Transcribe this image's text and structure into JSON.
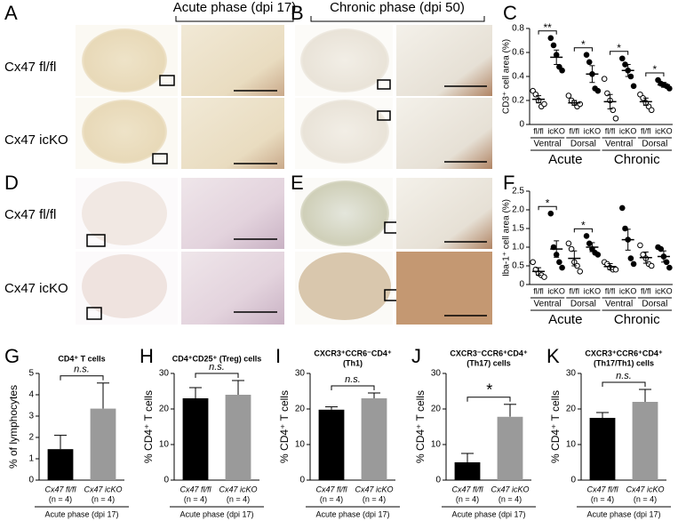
{
  "images": {
    "panels": [
      "A",
      "B",
      "D",
      "E"
    ],
    "headers": [
      "Acute phase (dpi 17)",
      "Chronic phase (dpi 50)"
    ],
    "row_labels": [
      "Cx47 fl/fl",
      "Cx47 icKO",
      "Cx47 fl/fl",
      "Cx47 icKO"
    ]
  },
  "chart_data": [
    {
      "type": "dot",
      "panel": "C",
      "ylabel": "CD3⁺ cell area (%)",
      "categories": [
        "fl/fl",
        "icKO",
        "fl/fl",
        "icKO",
        "fl/fl",
        "icKO",
        "fl/fl",
        "icKO"
      ],
      "sublabels": [
        "Ventral",
        "Dorsal",
        "Ventral",
        "Dorsal"
      ],
      "groups": [
        "Acute",
        "Chronic"
      ],
      "values": [
        0.21,
        0.56,
        0.18,
        0.42,
        0.19,
        0.45,
        0.19,
        0.33
      ],
      "errors": [
        0.03,
        0.06,
        0.02,
        0.07,
        0.06,
        0.05,
        0.03,
        0.02
      ],
      "points": [
        [
          0.28,
          0.25,
          0.2,
          0.15,
          0.17
        ],
        [
          0.72,
          0.66,
          0.58,
          0.48,
          0.45
        ],
        [
          0.24,
          0.2,
          0.18,
          0.15,
          0.17
        ],
        [
          0.58,
          0.52,
          0.42,
          0.3,
          0.28
        ],
        [
          0.38,
          0.26,
          0.2,
          0.12,
          0.05
        ],
        [
          0.55,
          0.5,
          0.45,
          0.4,
          0.32
        ],
        [
          0.25,
          0.22,
          0.18,
          0.15,
          0.12
        ],
        [
          0.37,
          0.34,
          0.33,
          0.32,
          0.3
        ]
      ],
      "significance": [
        "**",
        "*",
        "*",
        "*"
      ],
      "ylim": [
        0,
        0.8
      ],
      "yticks": [
        0,
        0.2,
        0.4,
        0.6,
        0.8
      ]
    },
    {
      "type": "dot",
      "panel": "F",
      "ylabel": "Iba-1⁺ cell area (%)",
      "categories": [
        "fl/fl",
        "icKO",
        "fl/fl",
        "icKO",
        "fl/fl",
        "icKO",
        "fl/fl",
        "icKO"
      ],
      "sublabels": [
        "Ventral",
        "Dorsal",
        "Ventral",
        "Dorsal"
      ],
      "groups": [
        "Acute",
        "Chronic"
      ],
      "values": [
        0.35,
        0.95,
        0.7,
        1.0,
        0.48,
        1.2,
        0.72,
        0.75
      ],
      "errors": [
        0.1,
        0.22,
        0.2,
        0.12,
        0.08,
        0.28,
        0.15,
        0.15
      ],
      "points": [
        [
          0.6,
          0.4,
          0.3,
          0.25,
          0.2
        ],
        [
          1.9,
          1.0,
          0.8,
          0.6,
          0.45
        ],
        [
          1.1,
          0.95,
          0.6,
          0.5,
          0.35
        ],
        [
          1.3,
          1.1,
          0.95,
          0.85,
          0.8
        ],
        [
          0.6,
          0.55,
          0.45,
          0.4,
          0.4
        ],
        [
          2.05,
          1.5,
          1.2,
          0.7,
          0.55
        ],
        [
          1.05,
          0.8,
          0.7,
          0.55,
          0.5
        ],
        [
          1.0,
          0.95,
          0.75,
          0.6,
          0.45
        ]
      ],
      "significance": [
        "*",
        "*",
        null,
        null
      ],
      "ylim": [
        0,
        2.5
      ],
      "yticks": [
        0,
        0.5,
        {
          "value": 1,
          "label": "1.0"
        },
        1.5,
        {
          "value": 2,
          "label": "2.0"
        },
        2.5
      ]
    },
    {
      "type": "bar",
      "panel": "G",
      "title": "CD4⁺ T cells",
      "ylabel": "% of lymphocytes",
      "categories": [
        "Cx47 fl/fl",
        "Cx47 icKO"
      ],
      "n_labels": [
        "(n = 4)",
        "(n = 4)"
      ],
      "xlabel": "Acute phase (dpi 17)",
      "values": [
        1.45,
        3.35
      ],
      "errors": [
        0.65,
        1.2
      ],
      "colors": [
        "#000000",
        "#9a9a9a"
      ],
      "significance": "n.s.",
      "ylim": [
        0,
        5
      ],
      "yticks": [
        0,
        1,
        2,
        3,
        4,
        5
      ]
    },
    {
      "type": "bar",
      "panel": "H",
      "title": "CD4⁺CD25⁺ (Treg) cells",
      "ylabel": "% CD4⁺ T cells",
      "categories": [
        "Cx47 fl/fl",
        "Cx47 icKO"
      ],
      "n_labels": [
        "(n = 4)",
        "(n = 4)"
      ],
      "xlabel": "Acute phase (dpi 17)",
      "values": [
        23,
        24
      ],
      "errors": [
        3,
        4
      ],
      "colors": [
        "#000000",
        "#9a9a9a"
      ],
      "significance": "n.s.",
      "ylim": [
        0,
        30
      ],
      "yticks": [
        0,
        10,
        20,
        30
      ]
    },
    {
      "type": "bar",
      "panel": "I",
      "title": "CXCR3⁺CCR6⁻CD4⁺",
      "subtitle": "(Th1)",
      "ylabel": "% CD4⁺ T cells",
      "categories": [
        "Cx47 fl/fl",
        "Cx47 icKO"
      ],
      "n_labels": [
        "(n = 4)",
        "(n = 4)"
      ],
      "xlabel": "Acute phase (dpi 17)",
      "values": [
        19.8,
        23
      ],
      "errors": [
        0.8,
        1.5
      ],
      "colors": [
        "#000000",
        "#9a9a9a"
      ],
      "significance": "n.s.",
      "ylim": [
        0,
        30
      ],
      "yticks": [
        0,
        10,
        20,
        30
      ]
    },
    {
      "type": "bar",
      "panel": "J",
      "title": "CXCR3⁻CCR6⁺CD4⁺",
      "subtitle": "(Th17) cells",
      "ylabel": "% CD4⁺ T cells",
      "categories": [
        "Cx47 fl/fl",
        "Cx47 icKO"
      ],
      "n_labels": [
        "(n = 4)",
        "(n = 4)"
      ],
      "xlabel": "Acute phase (dpi 17)",
      "values": [
        5,
        17.8
      ],
      "errors": [
        2.5,
        3.5
      ],
      "colors": [
        "#000000",
        "#9a9a9a"
      ],
      "significance": "*",
      "ylim": [
        0,
        30
      ],
      "yticks": [
        0,
        10,
        20,
        30
      ]
    },
    {
      "type": "bar",
      "panel": "K",
      "title": "CXCR3⁺CCR6⁺CD4⁺",
      "subtitle": "(Th17/Th1) cells",
      "ylabel": "% CD4⁺ T cells",
      "categories": [
        "Cx47 fl/fl",
        "Cx47 icKO"
      ],
      "n_labels": [
        "(n = 4)",
        "(n = 4)"
      ],
      "xlabel": "Acute phase (dpi 17)",
      "values": [
        17.5,
        22
      ],
      "errors": [
        1.5,
        3.5
      ],
      "colors": [
        "#000000",
        "#9a9a9a"
      ],
      "significance": "n.s.",
      "ylim": [
        0,
        30
      ],
      "yticks": [
        0,
        10,
        20,
        30
      ]
    }
  ]
}
